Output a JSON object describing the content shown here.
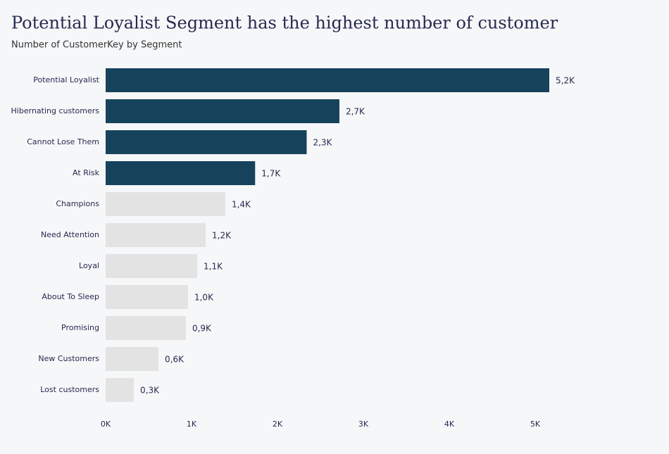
{
  "chart_data": {
    "type": "bar",
    "orientation": "horizontal",
    "title": "Potential Loyalist Segment has the highest number of customer",
    "subtitle": "Number of CustomerKey by Segment",
    "categories": [
      "Potential Loyalist",
      "Hibernating customers",
      "Cannot Lose Them",
      "At Risk",
      "Champions",
      "Need Attention",
      "Loyal",
      "About To Sleep",
      "Promising",
      "New Customers",
      "Lost customers"
    ],
    "values": [
      5164,
      2721,
      2340,
      1740,
      1393,
      1164,
      1066,
      959,
      934,
      615,
      328
    ],
    "value_labels": [
      "5,2K",
      "2,7K",
      "2,3K",
      "1,7K",
      "1,4K",
      "1,2K",
      "1,1K",
      "1,0K",
      "0,9K",
      "0,6K",
      "0,3K"
    ],
    "colors": [
      "#16425b",
      "#16425b",
      "#16425b",
      "#16425b",
      "#e3e3e3",
      "#e3e3e3",
      "#e3e3e3",
      "#e3e3e3",
      "#e3e3e3",
      "#e3e3e3",
      "#e3e3e3"
    ],
    "xlim": [
      0,
      6000
    ],
    "xticks": [
      {
        "value": 0,
        "label": "0K"
      },
      {
        "value": 1000,
        "label": "1K"
      },
      {
        "value": 2000,
        "label": "2K"
      },
      {
        "value": 3000,
        "label": "3K"
      },
      {
        "value": 4000,
        "label": "4K"
      },
      {
        "value": 5000,
        "label": "5K"
      }
    ],
    "grid": false
  }
}
